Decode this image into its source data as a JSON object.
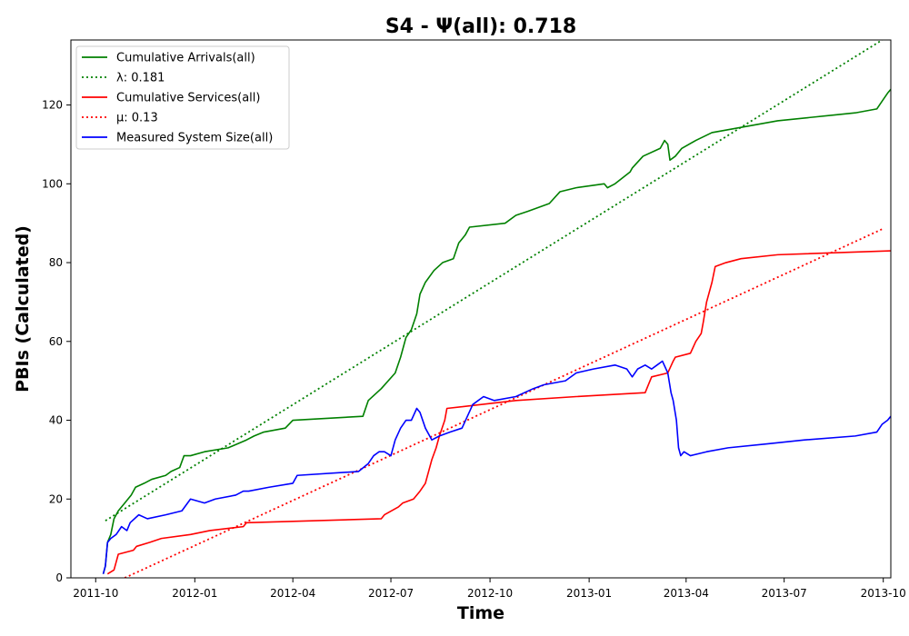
{
  "chart_data": {
    "type": "line",
    "title": "S4 -  Ψ(all): 0.718",
    "xlabel": "Time",
    "ylabel": "PBIs (Calculated)",
    "x_axis": {
      "type": "date",
      "range": [
        "2011-09-08",
        "2013-10-08"
      ],
      "ticks": [
        "2011-10",
        "2012-01",
        "2012-04",
        "2012-07",
        "2012-10",
        "2013-01",
        "2013-04",
        "2013-07",
        "2013-10"
      ]
    },
    "y_axis": {
      "range": [
        0,
        136.5
      ],
      "ticks": [
        0,
        20,
        40,
        60,
        80,
        100,
        120
      ]
    },
    "grid": false,
    "legend_position": "top-left",
    "legend": [
      "Cumulative Arrivals(all)",
      "λ: 0.181",
      "Cumulative Services(all)",
      "μ: 0.13",
      "Measured System Size(all)"
    ],
    "series": [
      {
        "name": "Cumulative Arrivals(all)",
        "color": "#008000",
        "style": "solid",
        "points": [
          [
            "2011-10-08",
            1
          ],
          [
            "2011-10-10",
            3
          ],
          [
            "2011-10-12",
            9
          ],
          [
            "2011-10-15",
            11
          ],
          [
            "2011-10-18",
            15
          ],
          [
            "2011-10-22",
            17
          ],
          [
            "2011-10-28",
            19
          ],
          [
            "2011-11-03",
            21
          ],
          [
            "2011-11-07",
            23
          ],
          [
            "2011-11-15",
            24
          ],
          [
            "2011-11-22",
            25
          ],
          [
            "2011-12-05",
            26
          ],
          [
            "2011-12-10",
            27
          ],
          [
            "2011-12-18",
            28
          ],
          [
            "2011-12-22",
            31
          ],
          [
            "2011-12-28",
            31
          ],
          [
            "2012-01-10",
            32
          ],
          [
            "2012-02-01",
            33
          ],
          [
            "2012-02-18",
            35
          ],
          [
            "2012-02-25",
            36
          ],
          [
            "2012-03-05",
            37
          ],
          [
            "2012-03-25",
            38
          ],
          [
            "2012-04-01",
            40
          ],
          [
            "2012-06-05",
            41
          ],
          [
            "2012-06-10",
            45
          ],
          [
            "2012-06-22",
            48
          ],
          [
            "2012-07-05",
            52
          ],
          [
            "2012-07-10",
            56
          ],
          [
            "2012-07-15",
            61
          ],
          [
            "2012-07-20",
            63
          ],
          [
            "2012-07-25",
            67
          ],
          [
            "2012-07-28",
            72
          ],
          [
            "2012-08-02",
            75
          ],
          [
            "2012-08-10",
            78
          ],
          [
            "2012-08-18",
            80
          ],
          [
            "2012-08-28",
            81
          ],
          [
            "2012-09-02",
            85
          ],
          [
            "2012-09-08",
            87
          ],
          [
            "2012-09-12",
            89
          ],
          [
            "2012-10-15",
            90
          ],
          [
            "2012-10-25",
            92
          ],
          [
            "2012-11-05",
            93
          ],
          [
            "2012-11-25",
            95
          ],
          [
            "2012-12-05",
            98
          ],
          [
            "2012-12-20",
            99
          ],
          [
            "2013-01-15",
            100
          ],
          [
            "2013-01-18",
            99
          ],
          [
            "2013-01-25",
            100
          ],
          [
            "2013-02-08",
            103
          ],
          [
            "2013-02-10",
            104
          ],
          [
            "2013-02-20",
            107
          ],
          [
            "2013-03-08",
            109
          ],
          [
            "2013-03-12",
            111
          ],
          [
            "2013-03-15",
            110
          ],
          [
            "2013-03-17",
            106
          ],
          [
            "2013-03-22",
            107
          ],
          [
            "2013-03-28",
            109
          ],
          [
            "2013-04-10",
            111
          ],
          [
            "2013-04-25",
            113
          ],
          [
            "2013-06-25",
            116
          ],
          [
            "2013-09-05",
            118
          ],
          [
            "2013-09-25",
            119
          ],
          [
            "2013-09-30",
            121
          ],
          [
            "2013-10-05",
            123
          ],
          [
            "2013-10-08",
            124
          ]
        ]
      },
      {
        "name": "λ: 0.181",
        "color": "#008000",
        "style": "dotted",
        "points": [
          [
            "2011-10-10",
            14.5
          ],
          [
            "2013-09-30",
            136.5
          ]
        ]
      },
      {
        "name": "Cumulative Services(all)",
        "color": "#ff0000",
        "style": "solid",
        "points": [
          [
            "2011-10-12",
            1
          ],
          [
            "2011-10-18",
            2
          ],
          [
            "2011-10-22",
            6
          ],
          [
            "2011-11-05",
            7
          ],
          [
            "2011-11-08",
            8
          ],
          [
            "2011-11-20",
            9
          ],
          [
            "2011-12-01",
            10
          ],
          [
            "2011-12-28",
            11
          ],
          [
            "2012-01-15",
            12
          ],
          [
            "2012-02-15",
            13
          ],
          [
            "2012-02-18",
            14
          ],
          [
            "2012-06-22",
            15
          ],
          [
            "2012-06-25",
            16
          ],
          [
            "2012-07-08",
            18
          ],
          [
            "2012-07-12",
            19
          ],
          [
            "2012-07-22",
            20
          ],
          [
            "2012-07-28",
            22
          ],
          [
            "2012-08-02",
            24
          ],
          [
            "2012-08-05",
            27
          ],
          [
            "2012-08-08",
            30
          ],
          [
            "2012-08-12",
            33
          ],
          [
            "2012-08-15",
            36
          ],
          [
            "2012-08-20",
            40
          ],
          [
            "2012-08-22",
            43
          ],
          [
            "2012-10-25",
            45
          ],
          [
            "2012-12-20",
            46
          ],
          [
            "2013-02-22",
            47
          ],
          [
            "2013-02-25",
            49
          ],
          [
            "2013-02-28",
            51
          ],
          [
            "2013-03-15",
            52
          ],
          [
            "2013-03-20",
            55
          ],
          [
            "2013-03-22",
            56
          ],
          [
            "2013-04-05",
            57
          ],
          [
            "2013-04-10",
            60
          ],
          [
            "2013-04-15",
            62
          ],
          [
            "2013-04-17",
            65
          ],
          [
            "2013-04-20",
            70
          ],
          [
            "2013-04-25",
            75
          ],
          [
            "2013-04-28",
            79
          ],
          [
            "2013-05-08",
            80
          ],
          [
            "2013-05-22",
            81
          ],
          [
            "2013-06-25",
            82
          ],
          [
            "2013-10-08",
            83
          ]
        ]
      },
      {
        "name": "μ: 0.13",
        "color": "#ff0000",
        "style": "dotted",
        "points": [
          [
            "2011-10-28",
            0
          ],
          [
            "2013-09-30",
            88.5
          ]
        ]
      },
      {
        "name": "Measured System Size(all)",
        "color": "#0000ff",
        "style": "solid",
        "points": [
          [
            "2011-10-08",
            1
          ],
          [
            "2011-10-10",
            3
          ],
          [
            "2011-10-12",
            9
          ],
          [
            "2011-10-15",
            10
          ],
          [
            "2011-10-20",
            11
          ],
          [
            "2011-10-25",
            13
          ],
          [
            "2011-10-30",
            12
          ],
          [
            "2011-11-02",
            14
          ],
          [
            "2011-11-10",
            16
          ],
          [
            "2011-11-18",
            15
          ],
          [
            "2011-12-05",
            16
          ],
          [
            "2011-12-20",
            17
          ],
          [
            "2011-12-28",
            20
          ],
          [
            "2012-01-10",
            19
          ],
          [
            "2012-01-20",
            20
          ],
          [
            "2012-02-08",
            21
          ],
          [
            "2012-02-15",
            22
          ],
          [
            "2012-02-20",
            22
          ],
          [
            "2012-03-10",
            23
          ],
          [
            "2012-04-01",
            24
          ],
          [
            "2012-04-05",
            26
          ],
          [
            "2012-06-01",
            27
          ],
          [
            "2012-06-10",
            29
          ],
          [
            "2012-06-15",
            31
          ],
          [
            "2012-06-20",
            32
          ],
          [
            "2012-06-25",
            32
          ],
          [
            "2012-07-01",
            31
          ],
          [
            "2012-07-05",
            35
          ],
          [
            "2012-07-10",
            38
          ],
          [
            "2012-07-15",
            40
          ],
          [
            "2012-07-20",
            40
          ],
          [
            "2012-07-25",
            43
          ],
          [
            "2012-07-28",
            42
          ],
          [
            "2012-08-02",
            38
          ],
          [
            "2012-08-08",
            35
          ],
          [
            "2012-08-15",
            36
          ],
          [
            "2012-08-25",
            37
          ],
          [
            "2012-09-05",
            38
          ],
          [
            "2012-09-15",
            44
          ],
          [
            "2012-09-25",
            46
          ],
          [
            "2012-10-05",
            45
          ],
          [
            "2012-10-25",
            46
          ],
          [
            "2012-11-10",
            48
          ],
          [
            "2012-11-20",
            49
          ],
          [
            "2012-12-10",
            50
          ],
          [
            "2012-12-20",
            52
          ],
          [
            "2013-01-05",
            53
          ],
          [
            "2013-01-25",
            54
          ],
          [
            "2013-02-05",
            53
          ],
          [
            "2013-02-10",
            51
          ],
          [
            "2013-02-15",
            53
          ],
          [
            "2013-02-22",
            54
          ],
          [
            "2013-02-28",
            53
          ],
          [
            "2013-03-05",
            54
          ],
          [
            "2013-03-10",
            55
          ],
          [
            "2013-03-15",
            52
          ],
          [
            "2013-03-18",
            47
          ],
          [
            "2013-03-20",
            45
          ],
          [
            "2013-03-23",
            40
          ],
          [
            "2013-03-25",
            33
          ],
          [
            "2013-03-27",
            31
          ],
          [
            "2013-03-30",
            32
          ],
          [
            "2013-04-05",
            31
          ],
          [
            "2013-04-20",
            32
          ],
          [
            "2013-05-10",
            33
          ],
          [
            "2013-06-15",
            34
          ],
          [
            "2013-07-20",
            35
          ],
          [
            "2013-09-05",
            36
          ],
          [
            "2013-09-25",
            37
          ],
          [
            "2013-09-30",
            39
          ],
          [
            "2013-10-05",
            40
          ],
          [
            "2013-10-08",
            41
          ]
        ]
      }
    ]
  }
}
